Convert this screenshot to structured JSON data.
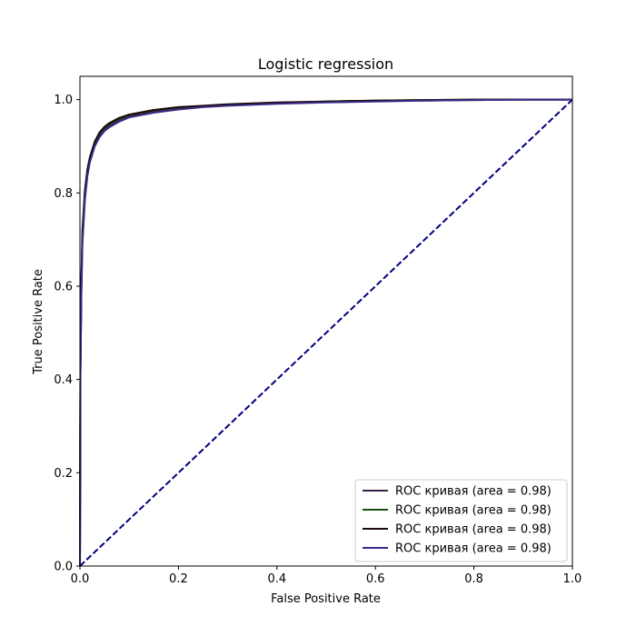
{
  "chart_data": {
    "type": "line",
    "title": "Logistic regression",
    "xlabel": "False Positive Rate",
    "ylabel": "True Positive Rate",
    "xlim": [
      0.0,
      1.0
    ],
    "ylim": [
      0.0,
      1.05
    ],
    "xticks": [
      "0.0",
      "0.2",
      "0.4",
      "0.6",
      "0.8",
      "1.0"
    ],
    "yticks": [
      "0.0",
      "0.2",
      "0.4",
      "0.6",
      "0.8",
      "1.0"
    ],
    "grid": false,
    "legend_position": "lower-right",
    "series": [
      {
        "name": "ROC кривая (area = 0.98)",
        "color": "#3b1f45",
        "x": [
          0,
          0.001,
          0.003,
          0.005,
          0.01,
          0.015,
          0.02,
          0.03,
          0.04,
          0.05,
          0.06,
          0.08,
          0.1,
          0.15,
          0.2,
          0.25,
          0.3,
          0.4,
          0.5,
          0.6,
          0.7,
          0.8,
          0.9,
          1.0
        ],
        "y": [
          0,
          0.42,
          0.6,
          0.7,
          0.79,
          0.84,
          0.87,
          0.905,
          0.925,
          0.937,
          0.945,
          0.957,
          0.965,
          0.975,
          0.981,
          0.985,
          0.988,
          0.992,
          0.995,
          0.997,
          0.998,
          0.999,
          1.0,
          1.0
        ]
      },
      {
        "name": "ROC кривая (area = 0.98)",
        "color": "#1a4d12",
        "x": [
          0,
          0.001,
          0.003,
          0.005,
          0.01,
          0.015,
          0.02,
          0.03,
          0.04,
          0.05,
          0.06,
          0.08,
          0.1,
          0.15,
          0.2,
          0.25,
          0.3,
          0.4,
          0.5,
          0.6,
          0.7,
          0.8,
          0.9,
          1.0
        ],
        "y": [
          0,
          0.43,
          0.61,
          0.71,
          0.8,
          0.845,
          0.873,
          0.908,
          0.928,
          0.94,
          0.948,
          0.959,
          0.967,
          0.977,
          0.983,
          0.986,
          0.989,
          0.993,
          0.996,
          0.998,
          0.999,
          1.0,
          1.0,
          1.0
        ]
      },
      {
        "name": "ROC кривая (area = 0.98)",
        "color": "#1c0a0a",
        "x": [
          0,
          0.001,
          0.003,
          0.005,
          0.01,
          0.015,
          0.02,
          0.03,
          0.04,
          0.05,
          0.06,
          0.08,
          0.1,
          0.15,
          0.2,
          0.25,
          0.3,
          0.4,
          0.5,
          0.6,
          0.7,
          0.8,
          0.9,
          1.0
        ],
        "y": [
          0,
          0.44,
          0.62,
          0.72,
          0.805,
          0.85,
          0.876,
          0.91,
          0.93,
          0.942,
          0.95,
          0.961,
          0.968,
          0.978,
          0.984,
          0.987,
          0.99,
          0.994,
          0.996,
          0.998,
          0.999,
          1.0,
          1.0,
          1.0
        ]
      },
      {
        "name": "ROC кривая (area = 0.98)",
        "color": "#3b2a8a",
        "x": [
          0,
          0.001,
          0.003,
          0.005,
          0.01,
          0.015,
          0.02,
          0.03,
          0.04,
          0.05,
          0.06,
          0.08,
          0.1,
          0.15,
          0.2,
          0.25,
          0.3,
          0.4,
          0.5,
          0.6,
          0.7,
          0.8,
          0.9,
          1.0
        ],
        "y": [
          0,
          0.41,
          0.59,
          0.69,
          0.785,
          0.835,
          0.865,
          0.9,
          0.92,
          0.933,
          0.941,
          0.953,
          0.962,
          0.972,
          0.979,
          0.984,
          0.987,
          0.991,
          0.994,
          0.996,
          0.998,
          0.999,
          1.0,
          1.0
        ]
      }
    ],
    "baseline": {
      "x": [
        0,
        1
      ],
      "y": [
        0,
        1
      ],
      "color": "#00007f",
      "style": "dashed"
    }
  }
}
